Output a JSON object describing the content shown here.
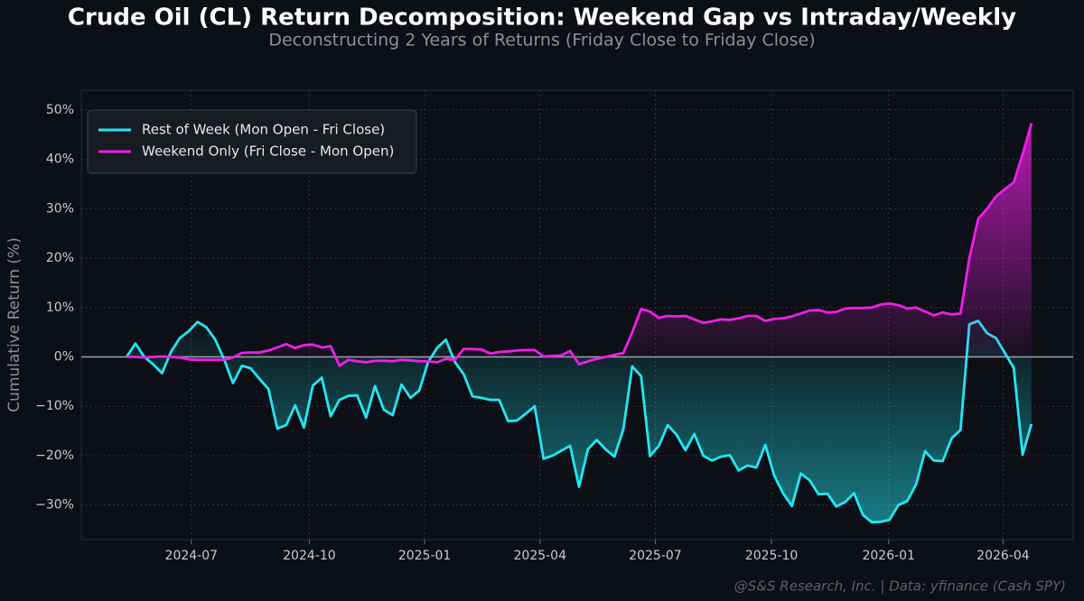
{
  "chart_data": {
    "type": "line",
    "title": "Crude Oil (CL) Return Decomposition: Weekend Gap vs Intraday/Weekly",
    "subtitle": "Deconstructing 2 Years of Returns (Friday Close to Friday Close)",
    "ylabel": "Cumulative Return (%)",
    "annotation": "@S&S Research, Inc. | Data: yfinance (Cash SPY)",
    "legend": "upper left",
    "grid": true,
    "series": [
      {
        "name": "Rest of Week (Mon Open - Fri Close)",
        "color": "#22e6f2",
        "values": [
          0,
          2.7,
          0,
          -1.5,
          -3.3,
          1,
          3.8,
          5.2,
          7.1,
          6,
          3.5,
          -0.5,
          -5.3,
          -1.8,
          -2.3,
          -4.5,
          -6.5,
          -14.5,
          -13.8,
          -9.8,
          -14.3,
          -5.8,
          -4.2,
          -12,
          -8.7,
          -7.9,
          -7.8,
          -12.3,
          -5.9,
          -10.7,
          -11.8,
          -5.6,
          -8.3,
          -6.8,
          -1,
          1.8,
          3.5,
          -1,
          -3.5,
          -8,
          -8.3,
          -8.7,
          -8.7,
          -13,
          -12.9,
          -11.5,
          -10,
          -20.6,
          -20,
          -19,
          -18,
          -26.3,
          -18.7,
          -16.8,
          -18.7,
          -20.2,
          -14.6,
          -1.9,
          -3.9,
          -20.1,
          -18,
          -13.8,
          -15.8,
          -18.9,
          -15.6,
          -20,
          -21,
          -20.2,
          -19.9,
          -23,
          -22,
          -22.4,
          -17.8,
          -24,
          -27.6,
          -30.2,
          -23.6,
          -25,
          -27.8,
          -27.7,
          -30.3,
          -29.4,
          -27.6,
          -32,
          -33.5,
          -33.4,
          -33,
          -30,
          -29.2,
          -25.8,
          -19.1,
          -21,
          -21.1,
          -16.5,
          -14.8,
          6.6,
          7.3,
          4.8,
          3.8,
          0.8,
          -2.2,
          -19.8,
          -13.6
        ]
      },
      {
        "name": "Weekend Only (Fri Close - Mon Open)",
        "color": "#f01ee6",
        "values": [
          0,
          0,
          -0.1,
          0,
          0.1,
          0,
          -0.1,
          -0.5,
          -0.6,
          -0.6,
          -0.6,
          -0.6,
          -0.1,
          0.8,
          0.9,
          0.9,
          1.3,
          1.9,
          2.6,
          1.8,
          2.4,
          2.5,
          1.9,
          2.2,
          -1.8,
          -0.6,
          -0.9,
          -1.1,
          -0.8,
          -0.8,
          -0.9,
          -0.6,
          -0.7,
          -0.9,
          -0.9,
          -1.1,
          -0.4,
          -0.6,
          1.6,
          1.6,
          1.5,
          0.7,
          1,
          1.1,
          1.3,
          1.4,
          1.4,
          0.1,
          0.2,
          0.3,
          1.2,
          -1.5,
          -0.9,
          -0.4,
          0,
          0.4,
          0.8,
          5,
          9.7,
          9.2,
          7.9,
          8.3,
          8.2,
          8.3,
          7.6,
          6.9,
          7.2,
          7.6,
          7.5,
          7.8,
          8.3,
          8.3,
          7.3,
          7.7,
          7.8,
          8.2,
          8.8,
          9.4,
          9.5,
          9,
          9.1,
          9.8,
          9.9,
          9.9,
          10,
          10.6,
          10.8,
          10.5,
          9.8,
          10,
          9.2,
          8.4,
          9,
          8.6,
          8.8,
          20,
          28,
          30,
          32.5,
          34,
          35.3,
          41,
          47.3
        ]
      }
    ],
    "xlim": [
      -5.1,
      106.7
    ],
    "xticks": [
      {
        "value": 7.3,
        "label": "2024-07"
      },
      {
        "value": 20.6,
        "label": "2024-10"
      },
      {
        "value": 33.6,
        "label": "2025-01"
      },
      {
        "value": 46.6,
        "label": "2025-04"
      },
      {
        "value": 59.6,
        "label": "2025-07"
      },
      {
        "value": 72.7,
        "label": "2025-10"
      },
      {
        "value": 85.9,
        "label": "2026-01"
      },
      {
        "value": 98.8,
        "label": "2026-04"
      }
    ],
    "ylim": [
      -37,
      54
    ],
    "yticks": [
      {
        "value": -30,
        "label": "−30%"
      },
      {
        "value": -20,
        "label": "−20%"
      },
      {
        "value": -10,
        "label": "−10%"
      },
      {
        "value": 0,
        "label": "0%"
      },
      {
        "value": 10,
        "label": "10%"
      },
      {
        "value": 20,
        "label": "20%"
      },
      {
        "value": 30,
        "label": "30%"
      },
      {
        "value": 40,
        "label": "40%"
      },
      {
        "value": 50,
        "label": "50%"
      }
    ]
  }
}
